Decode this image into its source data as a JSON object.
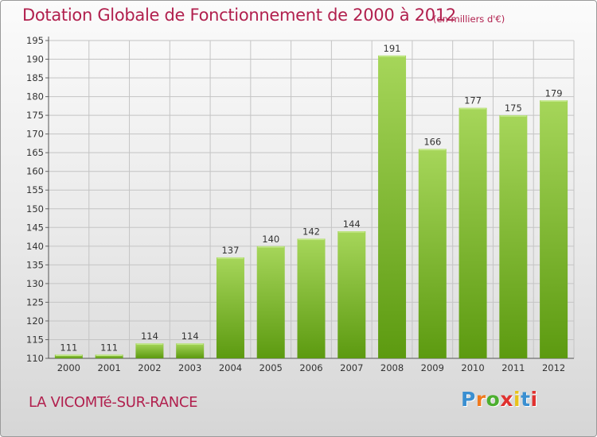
{
  "title": "Dotation Globale de Fonctionnement de 2000 à 2012",
  "subtitle": "(en milliers d'€)",
  "commune": "LA VICOMTé-SUR-RANCE",
  "logo": {
    "text": "Proxiti",
    "letter_colors": [
      "#3a8fd1",
      "#f07a1f",
      "#4caf2f",
      "#e0312f",
      "#e8c21a",
      "#3a8fd1",
      "#e0312f"
    ]
  },
  "colors": {
    "title": "#b1204e",
    "bar_top": "#a6d65a",
    "bar_bottom": "#5c9a10",
    "grid": "#c4c4c4",
    "axis_text": "#333333"
  },
  "chart_data": {
    "type": "bar",
    "categories": [
      "2000",
      "2001",
      "2002",
      "2003",
      "2004",
      "2005",
      "2006",
      "2007",
      "2008",
      "2009",
      "2010",
      "2011",
      "2012"
    ],
    "values": [
      111,
      111,
      114,
      114,
      137,
      140,
      142,
      144,
      191,
      166,
      177,
      175,
      179
    ],
    "ylim": [
      110,
      195
    ],
    "yticks": [
      110,
      115,
      120,
      125,
      130,
      135,
      140,
      145,
      150,
      155,
      160,
      165,
      170,
      175,
      180,
      185,
      190,
      195
    ],
    "grid": true,
    "data_labels": true
  }
}
